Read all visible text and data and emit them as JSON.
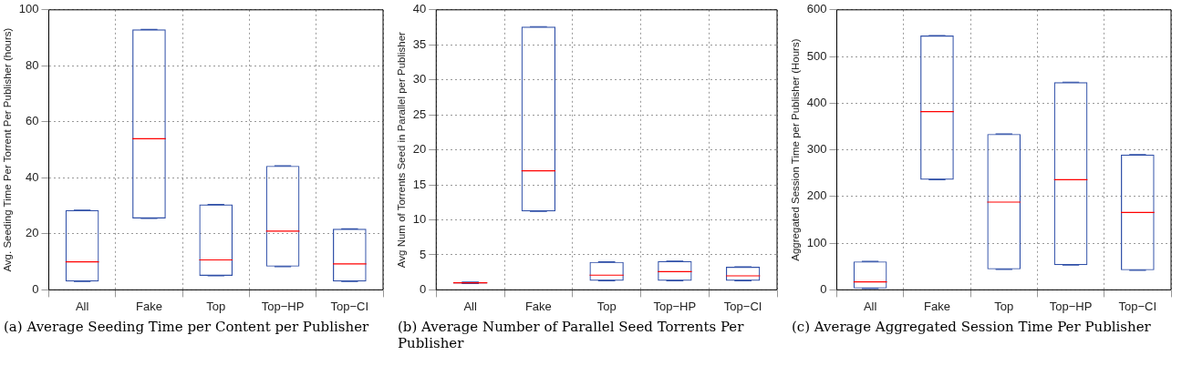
{
  "chart_data": [
    {
      "type": "box",
      "title": "(a) Average Seeding Time per Content per Publisher",
      "ylabel": "Avg. Seeding Time Per Torrent Per Publisher (hours)",
      "categories": [
        "All",
        "Fake",
        "Top",
        "Top−HP",
        "Top−CI"
      ],
      "ylim": [
        0,
        100
      ],
      "yticks": [
        0,
        20,
        40,
        60,
        80,
        100
      ],
      "grid": true,
      "legend": false,
      "series": [
        {
          "color": "#3050a8",
          "boxes": [
            {
              "low": 3,
              "q1": 3,
              "median": 10,
              "q3": 28.5,
              "high": 28.5
            },
            {
              "low": 25.5,
              "q1": 25.5,
              "median": 54,
              "q3": 93,
              "high": 93
            },
            {
              "low": 5,
              "q1": 5,
              "median": 10.7,
              "q3": 30.5,
              "high": 30.5
            },
            {
              "low": 8.3,
              "q1": 8.3,
              "median": 21,
              "q3": 44.3,
              "high": 44.3
            },
            {
              "low": 3,
              "q1": 3,
              "median": 9.3,
              "q3": 21.8,
              "high": 21.8
            }
          ]
        }
      ]
    },
    {
      "type": "box",
      "title": "(b) Average Number of Parallel Seed Torrents Per Publisher",
      "ylabel": "Avg Num of Torrents Seed in Parallel per Publisher",
      "categories": [
        "All",
        "Fake",
        "Top",
        "Top−HP",
        "Top−CI"
      ],
      "ylim": [
        0,
        40
      ],
      "yticks": [
        0,
        5,
        10,
        15,
        20,
        25,
        30,
        35,
        40
      ],
      "grid": true,
      "legend": false,
      "series": [
        {
          "color": "#3050a8",
          "boxes": [
            {
              "low": 0.9,
              "q1": 0.9,
              "median": 1,
              "q3": 1.1,
              "high": 1.1
            },
            {
              "low": 11.2,
              "q1": 11.2,
              "median": 17,
              "q3": 37.6,
              "high": 37.6
            },
            {
              "low": 1.3,
              "q1": 1.3,
              "median": 2.1,
              "q3": 4,
              "high": 4
            },
            {
              "low": 1.3,
              "q1": 1.3,
              "median": 2.6,
              "q3": 4.1,
              "high": 4.1
            },
            {
              "low": 1.3,
              "q1": 1.3,
              "median": 2,
              "q3": 3.3,
              "high": 3.3
            }
          ]
        }
      ]
    },
    {
      "type": "box",
      "title": "(c) Average Aggregated Session Time Per Publisher",
      "ylabel": "Aggregated Session Time per Publisher (Hours)",
      "categories": [
        "All",
        "Fake",
        "Top",
        "Top−HP",
        "Top−CI"
      ],
      "ylim": [
        0,
        600
      ],
      "yticks": [
        0,
        100,
        200,
        300,
        400,
        500,
        600
      ],
      "grid": true,
      "legend": false,
      "series": [
        {
          "color": "#3050a8",
          "boxes": [
            {
              "low": 3,
              "q1": 3,
              "median": 17,
              "q3": 61,
              "high": 61
            },
            {
              "low": 236,
              "q1": 236,
              "median": 382,
              "q3": 545,
              "high": 545
            },
            {
              "low": 44,
              "q1": 44,
              "median": 188,
              "q3": 334,
              "high": 334
            },
            {
              "low": 53,
              "q1": 53,
              "median": 236,
              "q3": 445,
              "high": 445
            },
            {
              "low": 42,
              "q1": 42,
              "median": 166,
              "q3": 290,
              "high": 290
            }
          ]
        }
      ]
    }
  ]
}
